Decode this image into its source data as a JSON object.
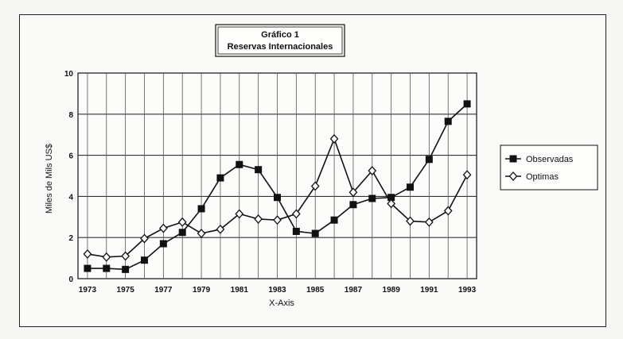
{
  "chart_data": {
    "type": "line",
    "title": "Gráfico 1",
    "subtitle": "Reservas Internacionales",
    "xlabel": "X-Axis",
    "ylabel": "Miles de Mils US$",
    "ylim": [
      0,
      10
    ],
    "yticks": [
      0,
      2,
      4,
      6,
      8,
      10
    ],
    "xlim": [
      1972.5,
      1993.5
    ],
    "xticks": [
      1973,
      1975,
      1977,
      1979,
      1981,
      1983,
      1985,
      1987,
      1989,
      1991,
      1993
    ],
    "x": [
      1973,
      1974,
      1975,
      1976,
      1977,
      1978,
      1979,
      1980,
      1981,
      1982,
      1983,
      1984,
      1985,
      1986,
      1987,
      1988,
      1989,
      1990,
      1991,
      1992,
      1993
    ],
    "grid": "horizontal+vertical",
    "legend": "right",
    "series": [
      {
        "name": "Observadas",
        "marker": "square",
        "values": [
          0.5,
          0.5,
          0.45,
          0.9,
          1.7,
          2.25,
          3.4,
          4.9,
          5.55,
          5.3,
          3.95,
          2.3,
          2.2,
          2.85,
          3.6,
          3.9,
          3.95,
          4.45,
          5.8,
          7.65,
          8.5
        ]
      },
      {
        "name": "Optimas",
        "marker": "diamond",
        "values": [
          1.2,
          1.05,
          1.1,
          1.95,
          2.45,
          2.75,
          2.2,
          2.4,
          3.15,
          2.9,
          2.85,
          3.15,
          4.5,
          6.8,
          4.2,
          5.25,
          3.65,
          2.8,
          2.75,
          3.3,
          5.05
        ]
      }
    ]
  }
}
